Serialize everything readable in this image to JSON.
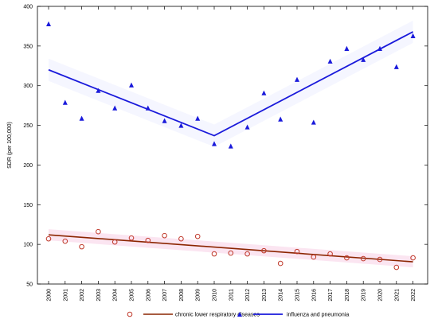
{
  "chart_data": {
    "type": "scatter",
    "title": "",
    "xlabel": "",
    "ylabel": "SDR (per 100,000)",
    "ylim": [
      50,
      400
    ],
    "yticks": [
      50,
      100,
      150,
      200,
      250,
      300,
      350,
      400
    ],
    "categories": [
      "2000",
      "2001",
      "2002",
      "2003",
      "2004",
      "2005",
      "2006",
      "2007",
      "2008",
      "2009",
      "2010",
      "2011",
      "2012",
      "2013",
      "2014",
      "2015",
      "2016",
      "2017",
      "2018",
      "2019",
      "2020",
      "2021",
      "2022"
    ],
    "grid": false,
    "legend_position": "bottom",
    "series": [
      {
        "name": "chronic lower respiratory diseases",
        "marker": "circle",
        "color": "#c0392b",
        "line_color": "#8b2500",
        "band_color": "#f7c6e0",
        "values": [
          107,
          104,
          97,
          116,
          103,
          108,
          105,
          111,
          107,
          110,
          88,
          89,
          88,
          92,
          76,
          91,
          84,
          88,
          83,
          82,
          81,
          71,
          83
        ],
        "trend": [
          {
            "x": "2000",
            "y": 112
          },
          {
            "x": "2022",
            "y": 78
          }
        ]
      },
      {
        "name": "influenza and pneumonia",
        "marker": "triangle",
        "color": "#1a1adb",
        "line_color": "#1a1adb",
        "band_color": "#e8ecff",
        "values": [
          378,
          279,
          259,
          294,
          272,
          301,
          272,
          256,
          250,
          259,
          227,
          224,
          248,
          291,
          258,
          308,
          254,
          331,
          347,
          333,
          347,
          324,
          363
        ],
        "trend": [
          {
            "x": "2000",
            "y": 320
          },
          {
            "x": "2010",
            "y": 237
          },
          {
            "x": "2022",
            "y": 368
          }
        ]
      }
    ]
  }
}
